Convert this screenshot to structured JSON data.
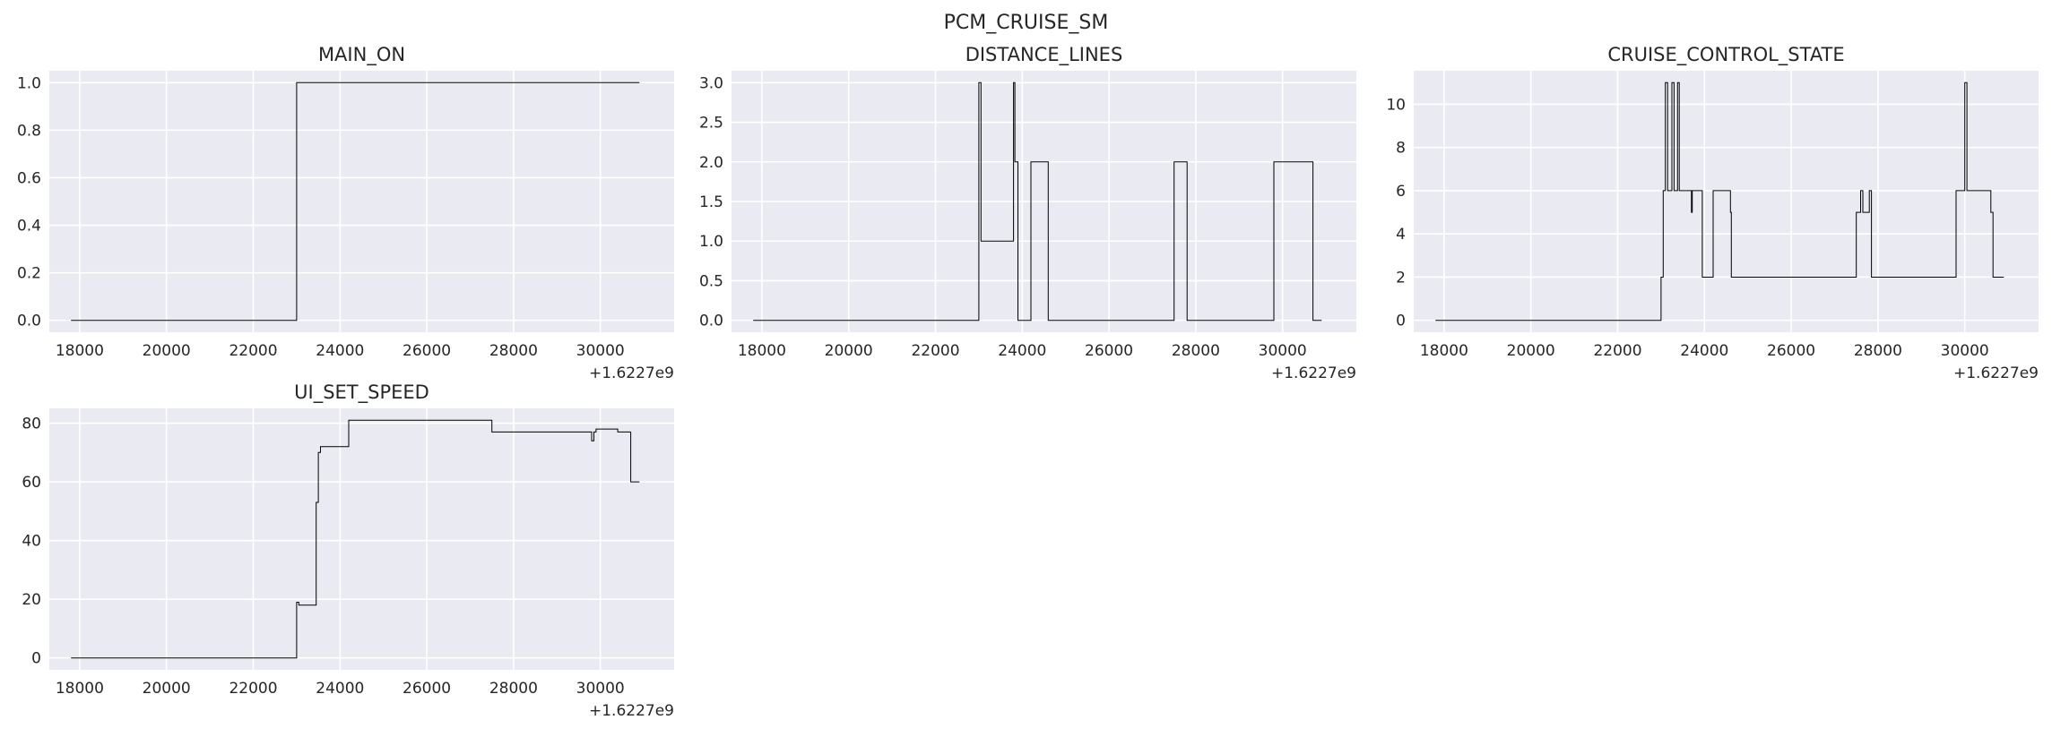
{
  "figure": {
    "title": "PCM_CRUISE_SM"
  },
  "chart_data": [
    {
      "type": "line",
      "title": "MAIN_ON",
      "xlabel": "",
      "ylabel": "",
      "x_offset_label": "+1.6227e9",
      "xlim": [
        17300,
        31700
      ],
      "ylim": [
        -0.05,
        1.05
      ],
      "x_ticks": [
        18000,
        20000,
        22000,
        24000,
        26000,
        28000,
        30000
      ],
      "y_ticks": [
        0.0,
        0.2,
        0.4,
        0.6,
        0.8,
        1.0
      ],
      "y_tick_labels": [
        "0.0",
        "0.2",
        "0.4",
        "0.6",
        "0.8",
        "1.0"
      ],
      "grid": true,
      "series": [
        {
          "x": [
            17800,
            23000,
            23000,
            30900
          ],
          "y": [
            0,
            0,
            1,
            1
          ]
        }
      ]
    },
    {
      "type": "line",
      "title": "DISTANCE_LINES",
      "xlabel": "",
      "ylabel": "",
      "x_offset_label": "+1.6227e9",
      "xlim": [
        17300,
        31700
      ],
      "ylim": [
        -0.15,
        3.15
      ],
      "x_ticks": [
        18000,
        20000,
        22000,
        24000,
        26000,
        28000,
        30000
      ],
      "y_ticks": [
        0.0,
        0.5,
        1.0,
        1.5,
        2.0,
        2.5,
        3.0
      ],
      "y_tick_labels": [
        "0.0",
        "0.5",
        "1.0",
        "1.5",
        "2.0",
        "2.5",
        "3.0"
      ],
      "grid": true,
      "series": [
        {
          "x": [
            17800,
            23000,
            23000,
            23050,
            23050,
            23800,
            23800,
            23830,
            23830,
            23900,
            23900,
            24000,
            24000,
            24200,
            24200,
            24600,
            24600,
            27500,
            27500,
            27800,
            27800,
            29800,
            29800,
            30700,
            30700,
            30900
          ],
          "y": [
            0,
            0,
            3,
            3,
            1,
            1,
            3,
            3,
            2,
            2,
            0,
            0,
            0,
            0,
            2,
            2,
            0,
            0,
            2,
            2,
            0,
            0,
            2,
            2,
            0,
            0
          ]
        }
      ]
    },
    {
      "type": "line",
      "title": "CRUISE_CONTROL_STATE",
      "xlabel": "",
      "ylabel": "",
      "x_offset_label": "+1.6227e9",
      "xlim": [
        17300,
        31700
      ],
      "ylim": [
        -0.55,
        11.55
      ],
      "x_ticks": [
        18000,
        20000,
        22000,
        24000,
        26000,
        28000,
        30000
      ],
      "y_ticks": [
        0,
        2,
        4,
        6,
        8,
        10
      ],
      "y_tick_labels": [
        "0",
        "2",
        "4",
        "6",
        "8",
        "10"
      ],
      "grid": true,
      "series": [
        {
          "x": [
            17800,
            23000,
            23000,
            23050,
            23050,
            23100,
            23100,
            23150,
            23150,
            23250,
            23250,
            23300,
            23300,
            23380,
            23380,
            23420,
            23420,
            23700,
            23700,
            23720,
            23720,
            23950,
            23950,
            24200,
            24200,
            24600,
            24600,
            24620,
            24620,
            27500,
            27500,
            27600,
            27600,
            27650,
            27650,
            27800,
            27800,
            27850,
            27850,
            29800,
            29800,
            30000,
            30000,
            30050,
            30050,
            30600,
            30600,
            30650,
            30650,
            30900
          ],
          "y": [
            0,
            0,
            2,
            2,
            6,
            6,
            11,
            11,
            6,
            6,
            11,
            11,
            6,
            6,
            11,
            11,
            6,
            6,
            5,
            5,
            6,
            6,
            2,
            2,
            6,
            6,
            5,
            5,
            2,
            2,
            5,
            5,
            6,
            6,
            5,
            5,
            6,
            6,
            2,
            2,
            6,
            6,
            11,
            11,
            6,
            6,
            5,
            5,
            2,
            2
          ]
        }
      ]
    },
    {
      "type": "line",
      "title": "UI_SET_SPEED",
      "xlabel": "",
      "ylabel": "",
      "x_offset_label": "+1.6227e9",
      "xlim": [
        17300,
        31700
      ],
      "ylim": [
        -4.05,
        85.05
      ],
      "x_ticks": [
        18000,
        20000,
        22000,
        24000,
        26000,
        28000,
        30000
      ],
      "y_ticks": [
        0,
        20,
        40,
        60,
        80
      ],
      "y_tick_labels": [
        "0",
        "20",
        "40",
        "60",
        "80"
      ],
      "grid": true,
      "series": [
        {
          "x": [
            17800,
            23000,
            23000,
            23050,
            23050,
            23450,
            23450,
            23500,
            23500,
            23550,
            23550,
            23600,
            23600,
            24200,
            24200,
            27500,
            27500,
            29800,
            29800,
            29850,
            29850,
            29900,
            29900,
            30400,
            30400,
            30700,
            30700,
            30900
          ],
          "y": [
            0,
            0,
            19,
            19,
            18,
            18,
            53,
            53,
            70,
            70,
            72,
            72,
            72,
            72,
            81,
            81,
            77,
            77,
            74,
            74,
            77,
            77,
            78,
            78,
            77,
            77,
            60,
            60
          ]
        }
      ]
    }
  ]
}
